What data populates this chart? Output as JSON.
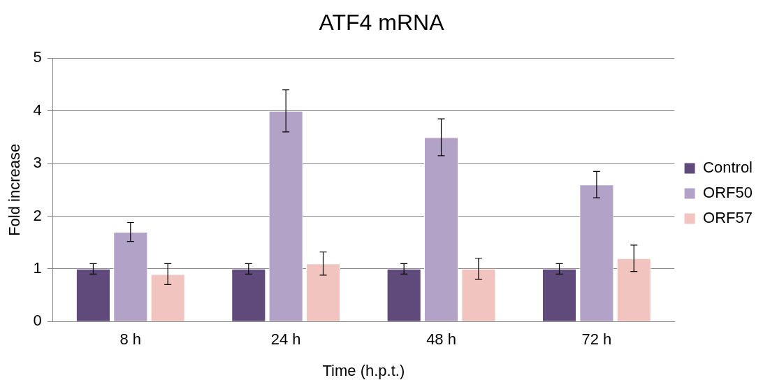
{
  "chart_data": {
    "type": "bar",
    "title": "ATF4 mRNA",
    "xlabel": "Time (h.p.t.)",
    "ylabel": "Fold increase",
    "categories": [
      "8 h",
      "24 h",
      "48 h",
      "72 h"
    ],
    "series": [
      {
        "name": "Control",
        "color": "#604a7b",
        "values": [
          1.0,
          1.0,
          1.0,
          1.0
        ],
        "errors": [
          0.1,
          0.1,
          0.1,
          0.1
        ]
      },
      {
        "name": "ORF50",
        "color": "#b3a2c7",
        "values": [
          1.7,
          4.0,
          3.5,
          2.6
        ],
        "errors": [
          0.18,
          0.4,
          0.35,
          0.25
        ]
      },
      {
        "name": "ORF57",
        "color": "#f2c4c0",
        "values": [
          0.9,
          1.1,
          1.0,
          1.2
        ],
        "errors": [
          0.2,
          0.22,
          0.2,
          0.25
        ]
      }
    ],
    "ylim": [
      0,
      5
    ],
    "yticks": [
      0,
      1,
      2,
      3,
      4,
      5
    ],
    "grid": "y",
    "legend": "right"
  }
}
